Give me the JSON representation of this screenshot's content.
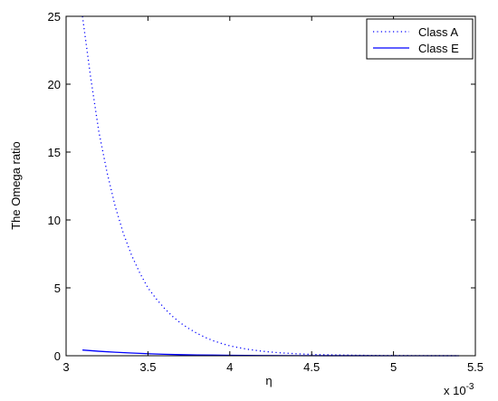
{
  "chart_data": {
    "type": "line",
    "xlabel": "η",
    "ylabel": "The Omega ratio",
    "x_exponent_label": "x 10",
    "x_exponent_power": "-3",
    "xlim": [
      3,
      5.5
    ],
    "ylim": [
      0,
      25
    ],
    "x_ticks": [
      3,
      3.5,
      4,
      4.5,
      5,
      5.5
    ],
    "x_tick_labels": [
      "3",
      "3.5",
      "4",
      "4.5",
      "5",
      "5.5"
    ],
    "y_ticks": [
      0,
      5,
      10,
      15,
      20,
      25
    ],
    "y_tick_labels": [
      "0",
      "5",
      "10",
      "15",
      "20",
      "25"
    ],
    "grid": false,
    "legend_position": "top-right",
    "series": [
      {
        "name": "Class A",
        "style": "dotted",
        "color": "#0000ff",
        "x": [
          3.1,
          3.15,
          3.2,
          3.25,
          3.3,
          3.35,
          3.4,
          3.45,
          3.5,
          3.55,
          3.6,
          3.65,
          3.7,
          3.75,
          3.8,
          3.85,
          3.9,
          3.95,
          4.0,
          4.1,
          4.2,
          4.3,
          4.4,
          4.5,
          4.6,
          4.7,
          4.8,
          4.9,
          5.0,
          5.2,
          5.4
        ],
        "y": [
          25.5,
          20.5,
          16.5,
          13.5,
          11.0,
          9.0,
          7.4,
          6.1,
          5.0,
          4.2,
          3.5,
          2.9,
          2.4,
          2.0,
          1.65,
          1.35,
          1.1,
          0.9,
          0.73,
          0.49,
          0.33,
          0.22,
          0.15,
          0.1,
          0.07,
          0.05,
          0.03,
          0.02,
          0.015,
          0.006,
          0.002
        ]
      },
      {
        "name": "Class E",
        "style": "solid",
        "color": "#0000ff",
        "x": [
          3.1,
          3.2,
          3.3,
          3.4,
          3.5,
          3.6,
          3.7,
          3.8,
          3.9,
          4.0,
          4.2,
          4.4,
          4.6,
          4.8,
          5.0,
          5.2,
          5.4
        ],
        "y": [
          0.42,
          0.33,
          0.26,
          0.2,
          0.15,
          0.11,
          0.08,
          0.06,
          0.045,
          0.033,
          0.018,
          0.01,
          0.005,
          0.003,
          0.0015,
          0.0008,
          0.0004
        ]
      }
    ]
  }
}
